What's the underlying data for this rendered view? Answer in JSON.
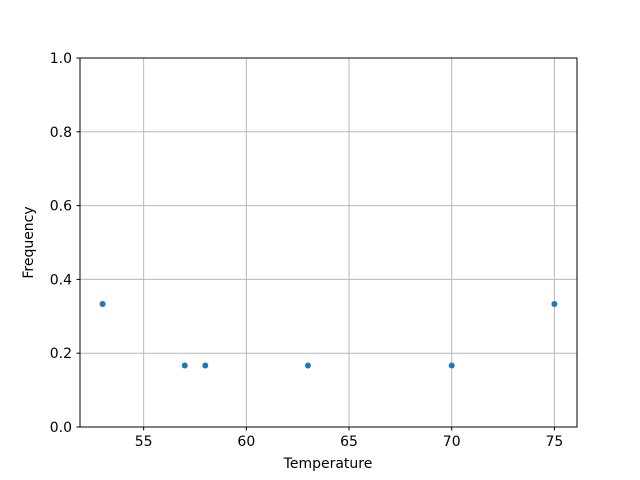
{
  "chart_data": {
    "type": "scatter",
    "title": "",
    "xlabel": "Temperature",
    "ylabel": "Frequency",
    "points": [
      {
        "x": 53,
        "y": 0.3333
      },
      {
        "x": 57,
        "y": 0.1667
      },
      {
        "x": 58,
        "y": 0.1667
      },
      {
        "x": 63,
        "y": 0.1667
      },
      {
        "x": 70,
        "y": 0.1667
      },
      {
        "x": 75,
        "y": 0.3333
      }
    ],
    "xlim": [
      51.9,
      76.1
    ],
    "ylim": [
      0.0,
      1.0
    ],
    "xticks": [
      55,
      60,
      65,
      70,
      75
    ],
    "xtick_labels": [
      "55",
      "60",
      "65",
      "70",
      "75"
    ],
    "yticks": [
      0.0,
      0.2,
      0.4,
      0.6,
      0.8,
      1.0
    ],
    "ytick_labels": [
      "0.0",
      "0.2",
      "0.4",
      "0.6",
      "0.8",
      "1.0"
    ],
    "grid": true,
    "legend": null,
    "marker_color": "#1f77b4",
    "grid_color": "#b8b8b8",
    "spine_color": "#000000",
    "text_color": "#000000",
    "background_color": "#ffffff"
  }
}
